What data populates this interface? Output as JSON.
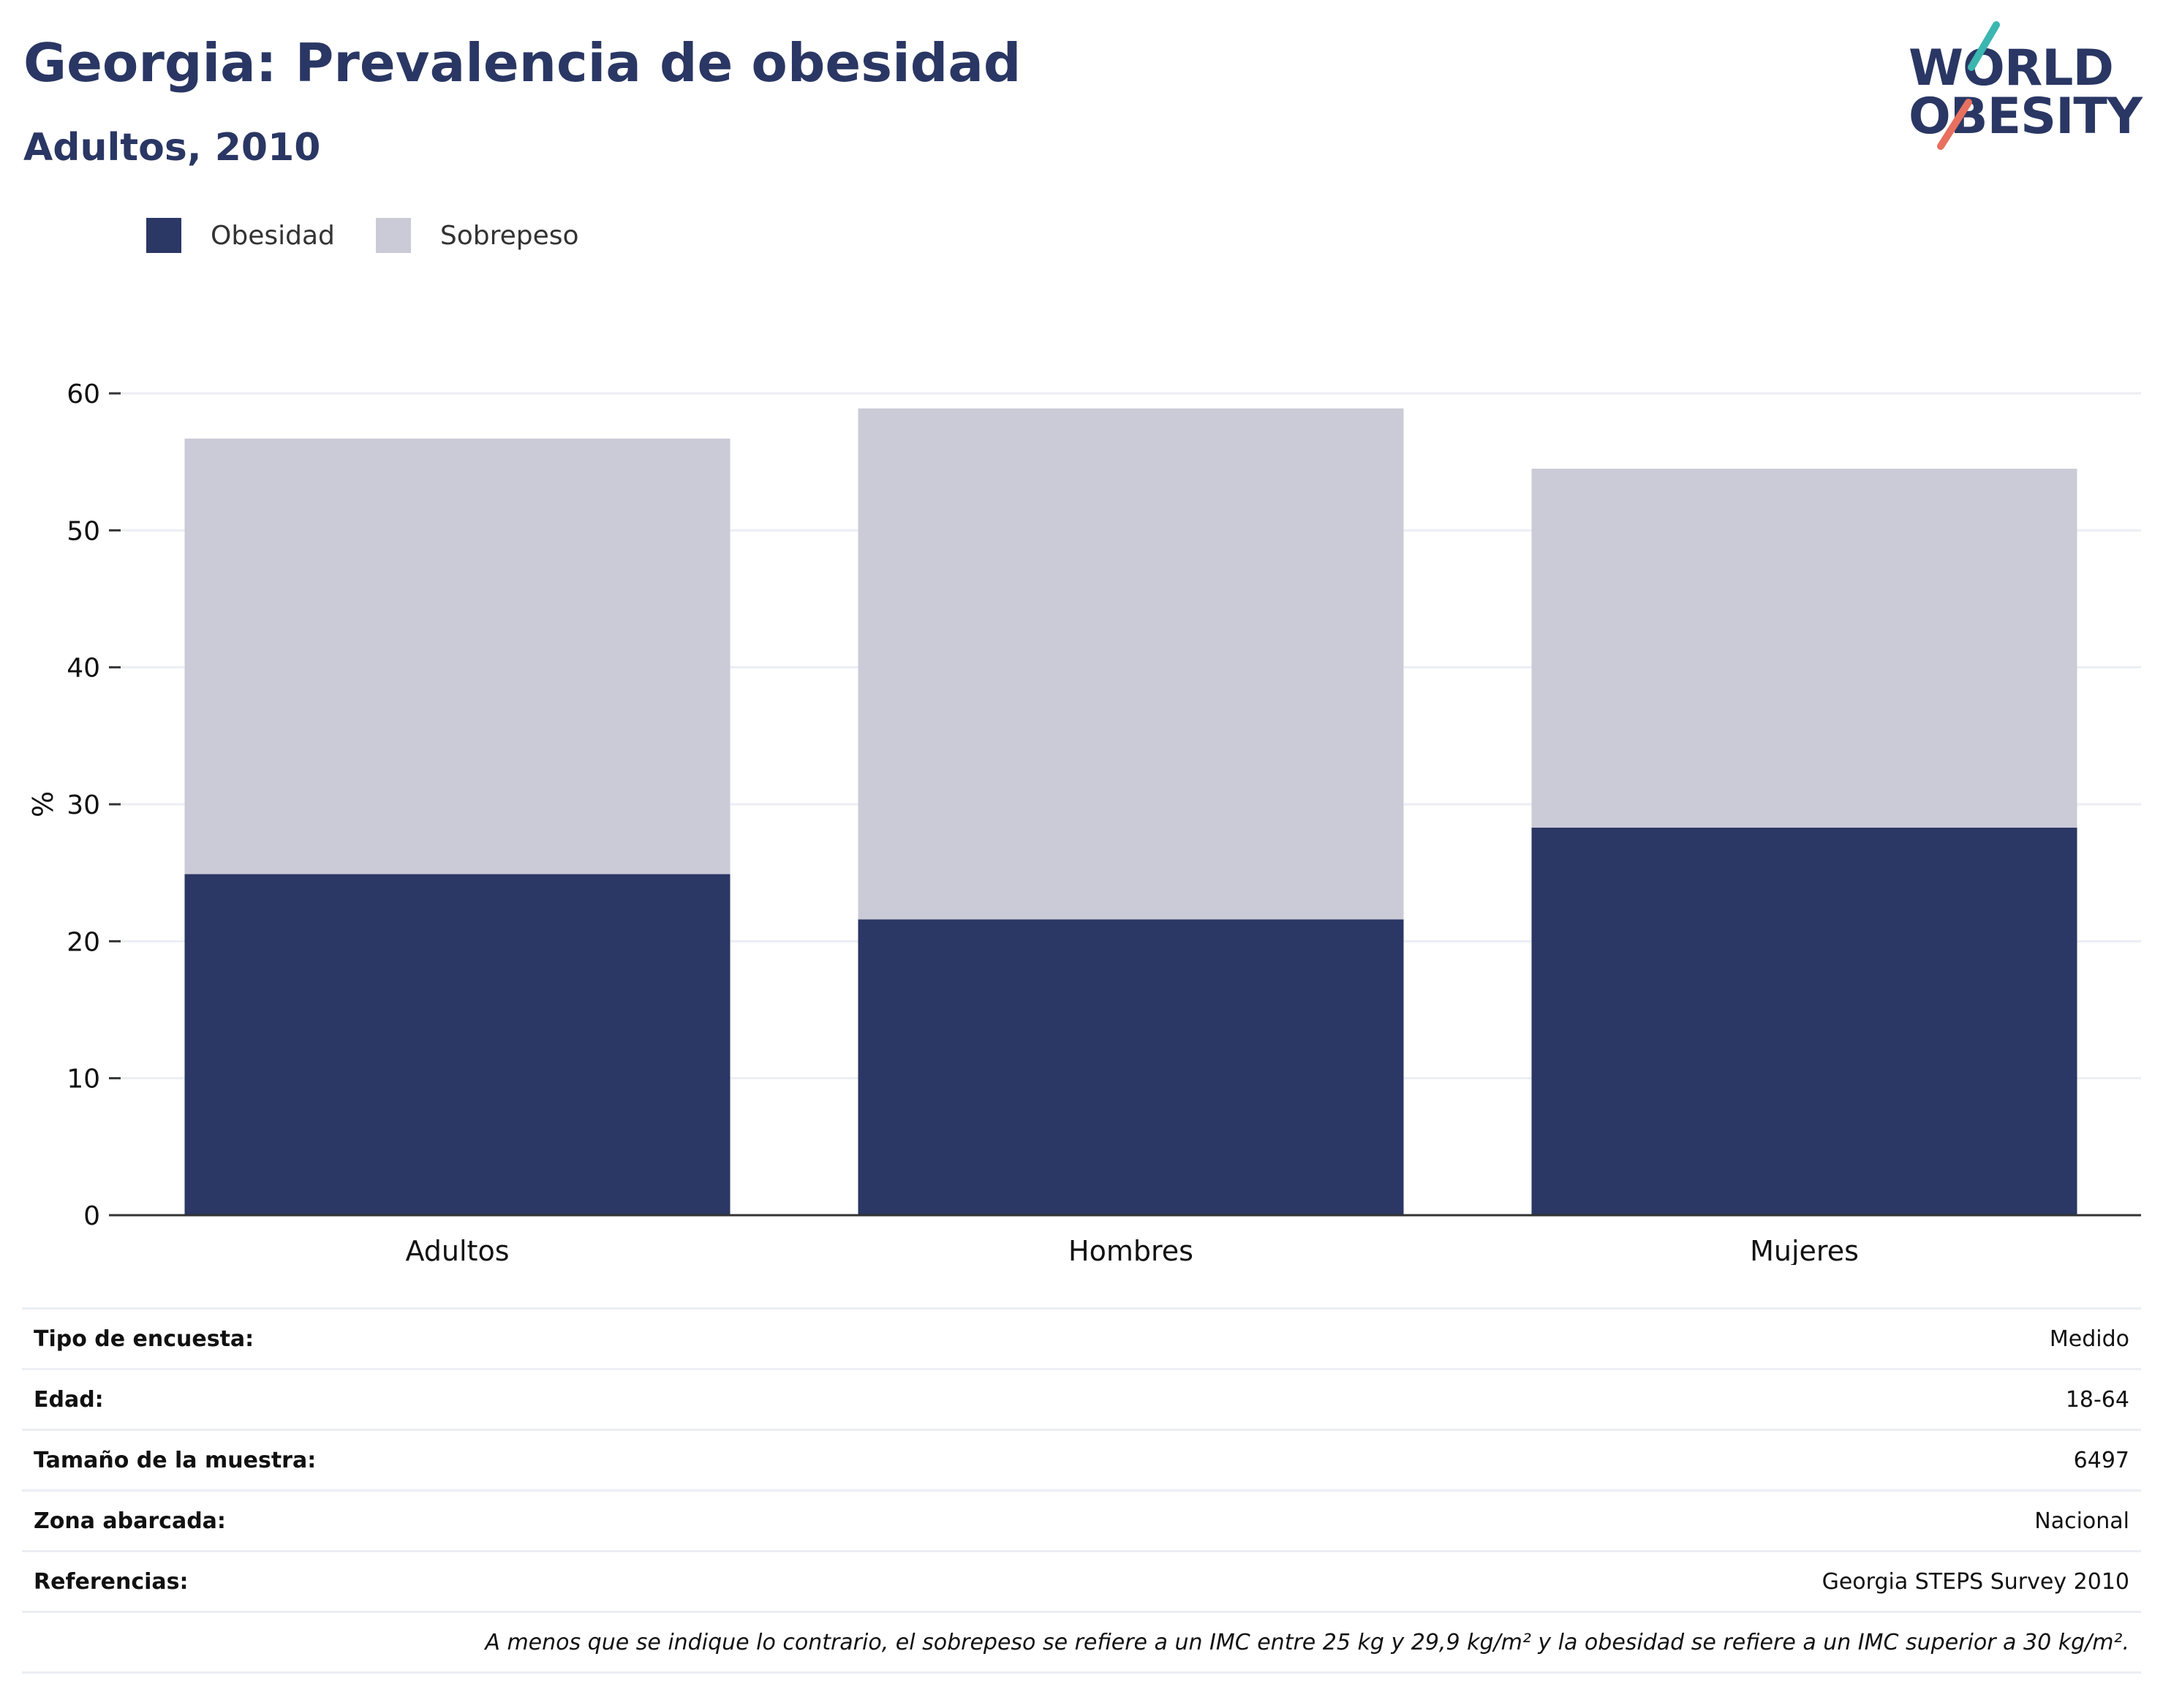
{
  "title": "Georgia: Prevalencia de obesidad",
  "subtitle": "Adultos, 2010",
  "logo": {
    "line1": "WORLD",
    "line2": "OBESITY"
  },
  "colors": {
    "obesity": "#2b3764",
    "overweight": "#cacbd7",
    "title": "#2a3764",
    "gridline": "#eceef4",
    "logo_teal": "#3bb6b0",
    "logo_coral": "#e8705f"
  },
  "legend": [
    {
      "label": "Obesidad",
      "color": "#2b3764"
    },
    {
      "label": "Sobrepeso",
      "color": "#cacbd7"
    }
  ],
  "chart_data": {
    "type": "bar",
    "stacked": true,
    "categories": [
      "Adultos",
      "Hombres",
      "Mujeres"
    ],
    "series": [
      {
        "name": "Obesidad",
        "values": [
          24.9,
          21.6,
          28.3
        ]
      },
      {
        "name": "Sobrepeso",
        "values": [
          31.8,
          37.3,
          26.2
        ]
      }
    ],
    "ylabel": "%",
    "ylim": [
      0,
      60
    ],
    "yticks": [
      0,
      10,
      20,
      30,
      40,
      50,
      60
    ],
    "grid": true,
    "legend_position": "top-left"
  },
  "meta": [
    {
      "label": "Tipo de encuesta:",
      "value": "Medido"
    },
    {
      "label": "Edad:",
      "value": "18-64"
    },
    {
      "label": "Tamaño de la muestra:",
      "value": "6497"
    },
    {
      "label": "Zona abarcada:",
      "value": "Nacional"
    },
    {
      "label": "Referencias:",
      "value": "Georgia STEPS Survey 2010"
    }
  ],
  "footnote": "A menos que se indique lo contrario, el sobrepeso se refiere a un IMC entre 25 kg y 29,9 kg/m² y la obesidad se refiere a un IMC superior a 30 kg/m²."
}
